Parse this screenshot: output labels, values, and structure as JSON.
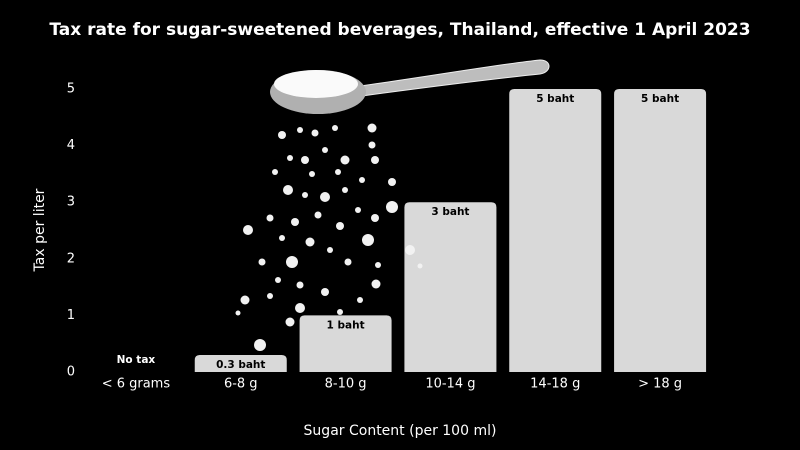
{
  "chart_data": {
    "type": "bar",
    "title": "Tax rate for sugar-sweetened beverages, Thailand, effective 1 April 2023",
    "x_label": "Sugar Content (per 100 ml)",
    "y_label": "Tax per liter",
    "categories": [
      "< 6 grams",
      "6-8 g",
      "8-10 g",
      "10-14 g",
      "14-18 g",
      "> 18 g"
    ],
    "values": [
      0,
      0.3,
      1,
      3,
      5,
      5
    ],
    "value_labels": [
      "No tax",
      "0.3 baht",
      "1 baht",
      "3 baht",
      "5 baht",
      "5 baht"
    ],
    "color": "#d9d9d9",
    "ylim": [
      0,
      5
    ],
    "yticks": [
      0,
      1,
      2,
      3,
      4,
      5
    ],
    "grid": false
  }
}
